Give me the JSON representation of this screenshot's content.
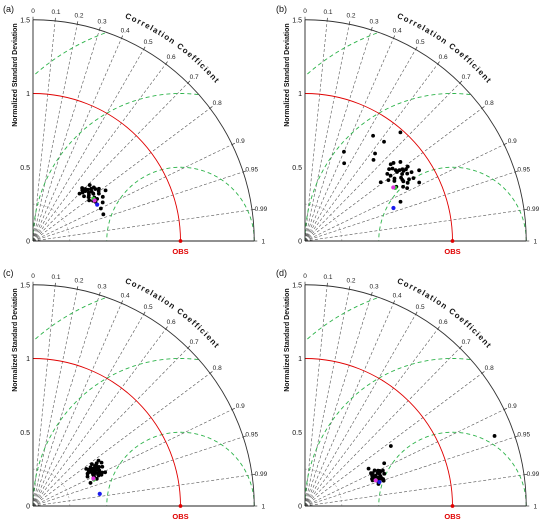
{
  "figure": {
    "panel_labels": [
      "(a)",
      "(b)",
      "(c)",
      "(d)"
    ]
  },
  "chart_data": [
    {
      "type": "taylor",
      "panel": "(a)",
      "ylabel": "Normalized Standard Deviation",
      "angular_label": "Correlation Coefficient",
      "reference_label": "OBS",
      "sd_ticks": [
        "0",
        "0.5",
        "1",
        "1.5"
      ],
      "sd_range": [
        0,
        1.5
      ],
      "correlation_ticks": [
        "0",
        "0.1",
        "0.2",
        "0.3",
        "0.4",
        "0.5",
        "0.6",
        "0.7",
        "0.8",
        "0.9",
        "0.95",
        "0.99",
        "1"
      ],
      "reference_sd": 1.0,
      "rms_contours": [
        0.5,
        1.0,
        1.5
      ],
      "colors": {
        "reference": "#e00000",
        "rms": "#2db34a",
        "ensemble": "#000000",
        "green": "#33cc33",
        "magenta": "#dd33dd",
        "blue": "#1a1aee"
      },
      "ensemble_points": [
        [
          0.935,
          0.51
        ],
        [
          0.902,
          0.51
        ],
        [
          0.875,
          0.54
        ],
        [
          0.845,
          0.56
        ],
        [
          0.836,
          0.52
        ],
        [
          0.82,
          0.6
        ],
        [
          0.816,
          0.51
        ],
        [
          0.812,
          0.55
        ],
        [
          0.795,
          0.56
        ],
        [
          0.784,
          0.57
        ],
        [
          0.786,
          0.52
        ],
        [
          0.768,
          0.55
        ],
        [
          0.75,
          0.55
        ],
        [
          0.744,
          0.53
        ],
        [
          0.757,
          0.5
        ],
        [
          0.732,
          0.51
        ],
        [
          0.712,
          0.54
        ],
        [
          0.71,
          0.5
        ],
        [
          0.715,
          0.47
        ],
        [
          0.696,
          0.48
        ],
        [
          0.68,
          0.49
        ],
        [
          0.701,
          0.45
        ],
        [
          0.785,
          0.48
        ],
        [
          0.752,
          0.46
        ],
        [
          0.81,
          0.47
        ],
        [
          0.83,
          0.49
        ],
        [
          0.724,
          0.49
        ],
        [
          0.773,
          0.49
        ],
        [
          0.848,
          0.5
        ],
        [
          0.765,
          0.52
        ]
      ],
      "highlight_points": [
        {
          "color": "green",
          "corr": 0.82,
          "sd": 0.5
        },
        {
          "color": "magenta",
          "corr": 0.835,
          "sd": 0.5
        },
        {
          "color": "blue",
          "corr": 0.87,
          "sd": 0.5
        }
      ]
    },
    {
      "type": "taylor",
      "panel": "(b)",
      "ylabel": "Normalized Standard Deviation",
      "angular_label": "Correlation Coefficient",
      "reference_label": "OBS",
      "sd_ticks": [
        "0",
        "0.5",
        "1",
        "1.5"
      ],
      "sd_range": [
        0,
        1.5
      ],
      "correlation_ticks": [
        "0",
        "0.1",
        "0.2",
        "0.3",
        "0.4",
        "0.5",
        "0.6",
        "0.7",
        "0.8",
        "0.9",
        "0.95",
        "0.99",
        "1"
      ],
      "reference_sd": 1.0,
      "rms_contours": [
        0.5,
        1.0,
        1.5
      ],
      "colors": {
        "reference": "#e00000",
        "rms": "#2db34a",
        "ensemble": "#000000",
        "green": "#33cc33",
        "magenta": "#dd33dd",
        "blue": "#1a1aee"
      },
      "ensemble_points": [
        [
          0.4,
          0.66
        ],
        [
          0.645,
          0.72
        ],
        [
          0.625,
          0.76
        ],
        [
          0.623,
          0.86
        ],
        [
          0.543,
          0.85
        ],
        [
          0.45,
          0.59
        ],
        [
          0.66,
          0.98
        ],
        [
          0.775,
          0.72
        ],
        [
          0.79,
          0.65
        ],
        [
          0.82,
          0.74
        ],
        [
          0.76,
          0.75
        ],
        [
          0.745,
          0.78
        ],
        [
          0.77,
          0.84
        ],
        [
          0.86,
          0.82
        ],
        [
          0.85,
          0.91
        ],
        [
          0.815,
          0.82
        ],
        [
          0.8,
          0.78
        ],
        [
          0.835,
          0.78
        ],
        [
          0.805,
          0.82
        ],
        [
          0.888,
          0.78
        ],
        [
          0.925,
          0.7
        ],
        [
          0.875,
          0.76
        ],
        [
          0.8,
          0.8
        ],
        [
          0.84,
          0.86
        ],
        [
          0.865,
          0.85
        ],
        [
          0.89,
          0.87
        ],
        [
          0.808,
          0.7
        ],
        [
          0.83,
          0.73
        ],
        [
          0.81,
          0.86
        ],
        [
          0.847,
          0.78
        ],
        [
          0.788,
          0.78
        ],
        [
          0.823,
          0.8
        ],
        [
          0.855,
          0.78
        ],
        [
          0.87,
          0.8
        ],
        [
          0.815,
          0.84
        ],
        [
          0.77,
          0.77
        ],
        [
          0.795,
          0.73
        ],
        [
          0.835,
          0.83
        ],
        [
          0.86,
          0.72
        ],
        [
          0.75,
          0.8
        ]
      ],
      "highlight_points": [
        {
          "color": "green",
          "corr": 0.862,
          "sd": 0.71
        },
        {
          "color": "magenta",
          "corr": 0.855,
          "sd": 0.7
        },
        {
          "color": "blue",
          "corr": 0.937,
          "sd": 0.64
        }
      ]
    },
    {
      "type": "taylor",
      "panel": "(c)",
      "ylabel": "Normalized Standard Deviation",
      "angular_label": "Correlation Coefficient",
      "reference_label": "OBS",
      "sd_ticks": [
        "0",
        "0.5",
        "1",
        "1.5"
      ],
      "sd_range": [
        0,
        1.5
      ],
      "correlation_ticks": [
        "0",
        "0.1",
        "0.2",
        "0.3",
        "0.4",
        "0.5",
        "0.6",
        "0.7",
        "0.8",
        "0.9",
        "0.95",
        "0.99",
        "1"
      ],
      "reference_sd": 1.0,
      "rms_contours": [
        0.5,
        1.0,
        1.5
      ],
      "colors": {
        "reference": "#e00000",
        "rms": "#2db34a",
        "ensemble": "#000000",
        "green": "#33cc33",
        "magenta": "#dd33dd",
        "blue": "#1a1aee"
      },
      "ensemble_points": [
        [
          0.885,
          0.46
        ],
        [
          0.88,
          0.42
        ],
        [
          0.845,
          0.46
        ],
        [
          0.87,
          0.46
        ],
        [
          0.865,
          0.46
        ],
        [
          0.83,
          0.47
        ],
        [
          0.86,
          0.43
        ],
        [
          0.855,
          0.44
        ],
        [
          0.838,
          0.45
        ],
        [
          0.82,
          0.44
        ],
        [
          0.815,
          0.49
        ],
        [
          0.88,
          0.51
        ],
        [
          0.838,
          0.51
        ],
        [
          0.89,
          0.49
        ],
        [
          0.868,
          0.5
        ],
        [
          0.86,
          0.52
        ],
        [
          0.84,
          0.5
        ],
        [
          0.895,
          0.5
        ],
        [
          0.85,
          0.48
        ],
        [
          0.875,
          0.47
        ],
        [
          0.9,
          0.52
        ],
        [
          0.822,
          0.54
        ],
        [
          0.845,
          0.55
        ],
        [
          0.907,
          0.49
        ],
        [
          0.87,
          0.54
        ],
        [
          0.91,
          0.45
        ],
        [
          0.9,
          0.46
        ],
        [
          0.892,
          0.46
        ],
        [
          0.885,
          0.48
        ],
        [
          0.865,
          0.49
        ],
        [
          0.92,
          0.47
        ],
        [
          0.928,
          0.42
        ],
        [
          0.906,
          0.54
        ],
        [
          0.91,
          0.51
        ],
        [
          0.83,
          0.52
        ],
        [
          0.855,
          0.5
        ],
        [
          0.87,
          0.48
        ]
      ],
      "highlight_points": [
        {
          "color": "green",
          "corr": 0.917,
          "sd": 0.45
        },
        {
          "color": "magenta",
          "corr": 0.91,
          "sd": 0.45
        },
        {
          "color": "blue",
          "corr": 0.984,
          "sd": 0.46
        }
      ]
    },
    {
      "type": "taylor",
      "panel": "(d)",
      "ylabel": "Normalized Standard Deviation",
      "angular_label": "Correlation Coefficient",
      "reference_label": "OBS",
      "sd_ticks": [
        "0",
        "0.5",
        "1",
        "1.5"
      ],
      "sd_range": [
        0,
        1.5
      ],
      "correlation_ticks": [
        "0",
        "0.1",
        "0.2",
        "0.3",
        "0.4",
        "0.5",
        "0.6",
        "0.7",
        "0.8",
        "0.9",
        "0.95",
        "0.99",
        "1"
      ],
      "reference_sd": 1.0,
      "rms_contours": [
        0.5,
        1.0,
        1.5
      ],
      "colors": {
        "reference": "#e00000",
        "rms": "#2db34a",
        "ensemble": "#000000",
        "green": "#33cc33",
        "magenta": "#dd33dd",
        "blue": "#1a1aee"
      },
      "ensemble_points": [
        [
          0.938,
          1.37
        ],
        [
          0.917,
          0.5
        ],
        [
          0.91,
          0.5
        ],
        [
          0.93,
          0.51
        ],
        [
          0.924,
          0.5
        ],
        [
          0.935,
          0.54
        ],
        [
          0.937,
          0.55
        ],
        [
          0.9,
          0.51
        ],
        [
          0.895,
          0.5
        ],
        [
          0.92,
          0.52
        ],
        [
          0.93,
          0.55
        ],
        [
          0.926,
          0.58
        ],
        [
          0.905,
          0.56
        ],
        [
          0.91,
          0.56
        ],
        [
          0.935,
          0.49
        ],
        [
          0.932,
          0.53
        ],
        [
          0.94,
          0.55
        ],
        [
          0.89,
          0.53
        ],
        [
          0.918,
          0.55
        ],
        [
          0.922,
          0.52
        ],
        [
          0.9,
          0.55
        ],
        [
          0.91,
          0.54
        ],
        [
          0.927,
          0.49
        ],
        [
          0.94,
          0.55
        ],
        [
          0.95,
          0.56
        ],
        [
          0.945,
          0.52
        ],
        [
          0.94,
          0.53
        ],
        [
          0.932,
          0.52
        ],
        [
          0.958,
          0.52
        ],
        [
          0.862,
          0.5
        ],
        [
          0.82,
          0.71
        ],
        [
          0.88,
          0.61
        ],
        [
          0.92,
          0.52
        ],
        [
          0.945,
          0.56
        ],
        [
          0.952,
          0.56
        ],
        [
          0.91,
          0.58
        ]
      ],
      "highlight_points": [
        {
          "color": "green",
          "corr": 0.94,
          "sd": 0.51
        },
        {
          "color": "magenta",
          "corr": 0.94,
          "sd": 0.51
        },
        {
          "color": "blue",
          "corr": 0.952,
          "sd": 0.53
        }
      ]
    }
  ]
}
